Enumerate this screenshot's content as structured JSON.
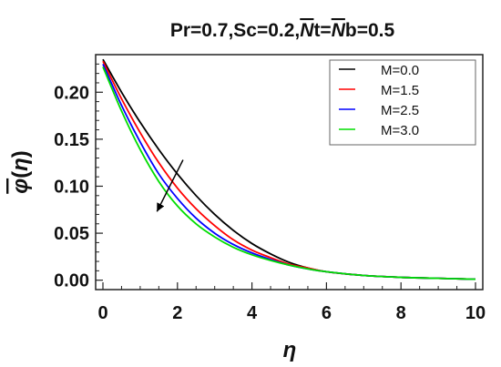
{
  "chart_data": {
    "type": "line",
    "title": "Pr=0.7,Sc=0.2,Nt=Nb=0.5",
    "title_parts": [
      "Pr=0.7,Sc=0.2,",
      "N",
      "t=",
      "N",
      "b=0.5"
    ],
    "xlabel": "η",
    "ylabel_parts": [
      "φ",
      "(",
      "η",
      ")"
    ],
    "xlim": [
      0,
      10
    ],
    "ylim": [
      -0.01,
      0.24
    ],
    "x_ticks": [
      0,
      2,
      4,
      6,
      8,
      10
    ],
    "y_ticks": [
      0.0,
      0.05,
      0.1,
      0.15,
      0.2
    ],
    "y_tick_labels": [
      "0.00",
      "0.05",
      "0.10",
      "0.15",
      "0.20"
    ],
    "grid": false,
    "legend_position": "top-right",
    "x": [
      0,
      0.5,
      1,
      1.5,
      2,
      2.5,
      3,
      3.5,
      4,
      4.5,
      5,
      5.5,
      6,
      7,
      8,
      9,
      10
    ],
    "series": [
      {
        "name": "M=0.0",
        "color": "#000000",
        "values": [
          0.235,
          0.2,
          0.168,
          0.139,
          0.113,
          0.09,
          0.07,
          0.053,
          0.039,
          0.028,
          0.019,
          0.013,
          0.009,
          0.005,
          0.003,
          0.002,
          0.001
        ]
      },
      {
        "name": "M=1.5",
        "color": "#ff0000",
        "values": [
          0.233,
          0.193,
          0.157,
          0.125,
          0.098,
          0.076,
          0.058,
          0.043,
          0.032,
          0.024,
          0.017,
          0.013,
          0.009,
          0.005,
          0.003,
          0.002,
          0.001
        ]
      },
      {
        "name": "M=2.5",
        "color": "#0000ff",
        "values": [
          0.23,
          0.186,
          0.147,
          0.113,
          0.087,
          0.066,
          0.05,
          0.038,
          0.029,
          0.022,
          0.016,
          0.012,
          0.009,
          0.005,
          0.003,
          0.002,
          0.001
        ]
      },
      {
        "name": "M=3.0",
        "color": "#00dd00",
        "values": [
          0.227,
          0.18,
          0.139,
          0.105,
          0.079,
          0.06,
          0.046,
          0.035,
          0.027,
          0.021,
          0.016,
          0.012,
          0.009,
          0.005,
          0.003,
          0.002,
          0.001
        ]
      }
    ],
    "arrow": {
      "from": [
        2.15,
        0.128
      ],
      "to": [
        1.45,
        0.073
      ]
    }
  }
}
